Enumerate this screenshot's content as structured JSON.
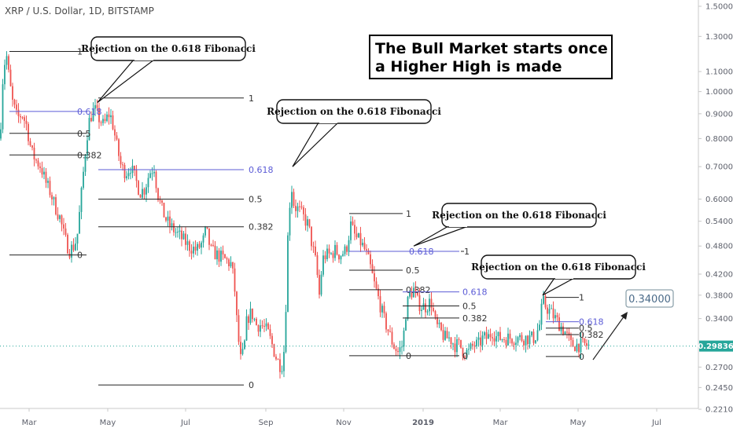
{
  "header": {
    "title": "XRP / U.S. Dollar, 1D, BITSTAMP"
  },
  "headline": {
    "line1": "The Bull Market starts once",
    "line2": "a Higher High is made"
  },
  "colors": {
    "up": "#26a69a",
    "down": "#ef5350",
    "fib_blue": "#5b5bd6",
    "fib_line": "#222222",
    "current_price_bg": "#26a69a",
    "target_border": "#90a4ae"
  },
  "chart_data": {
    "type": "candlestick",
    "title": "XRP / U.S. Dollar, 1D, BITSTAMP",
    "y_scale": "log",
    "ylim": [
      0.21,
      1.55
    ],
    "y_ticks": [
      "1.50000",
      "1.30000",
      "1.10000",
      "1.00000",
      "0.90000",
      "0.80000",
      "0.70000",
      "0.60000",
      "0.54000",
      "0.48000",
      "0.42000",
      "0.38000",
      "0.34000",
      "0.30000",
      "0.27000",
      "0.24500",
      "0.22100"
    ],
    "x_ticks": [
      "Mar",
      "May",
      "Jul",
      "Sep",
      "Nov",
      "2019",
      "Mar",
      "May",
      "Jul"
    ],
    "current_price": "0.29836",
    "target": {
      "label": "0.34000",
      "price": 0.34
    },
    "series": [
      {
        "name": "XRP/USD",
        "path": [
          [
            0,
            0.8
          ],
          [
            4,
            1.1
          ],
          [
            8,
            1.2
          ],
          [
            12,
            1.05
          ],
          [
            16,
            0.95
          ],
          [
            22,
            0.88
          ],
          [
            28,
            0.9
          ],
          [
            34,
            0.85
          ],
          [
            40,
            0.75
          ],
          [
            46,
            0.72
          ],
          [
            52,
            0.7
          ],
          [
            58,
            0.65
          ],
          [
            64,
            0.62
          ],
          [
            70,
            0.58
          ],
          [
            76,
            0.55
          ],
          [
            82,
            0.5
          ],
          [
            88,
            0.47
          ],
          [
            94,
            0.48
          ],
          [
            98,
            0.5
          ],
          [
            102,
            0.58
          ],
          [
            106,
            0.68
          ],
          [
            110,
            0.8
          ],
          [
            114,
            0.88
          ],
          [
            120,
            0.92
          ],
          [
            126,
            0.88
          ],
          [
            132,
            0.85
          ],
          [
            138,
            0.9
          ],
          [
            142,
            0.88
          ],
          [
            148,
            0.78
          ],
          [
            154,
            0.7
          ],
          [
            160,
            0.68
          ],
          [
            166,
            0.7
          ],
          [
            172,
            0.66
          ],
          [
            178,
            0.62
          ],
          [
            184,
            0.63
          ],
          [
            190,
            0.68
          ],
          [
            196,
            0.7
          ],
          [
            200,
            0.62
          ],
          [
            206,
            0.57
          ],
          [
            212,
            0.54
          ],
          [
            220,
            0.52
          ],
          [
            230,
            0.5
          ],
          [
            240,
            0.48
          ],
          [
            250,
            0.47
          ],
          [
            258,
            0.49
          ],
          [
            262,
            0.52
          ],
          [
            268,
            0.47
          ],
          [
            276,
            0.46
          ],
          [
            286,
            0.45
          ],
          [
            294,
            0.44
          ],
          [
            298,
            0.4
          ],
          [
            302,
            0.32
          ],
          [
            306,
            0.28
          ],
          [
            310,
            0.29
          ],
          [
            314,
            0.34
          ],
          [
            320,
            0.35
          ],
          [
            326,
            0.33
          ],
          [
            332,
            0.33
          ],
          [
            340,
            0.32
          ],
          [
            346,
            0.3
          ],
          [
            352,
            0.28
          ],
          [
            358,
            0.27
          ],
          [
            362,
            0.3
          ],
          [
            366,
            0.5
          ],
          [
            370,
            0.65
          ],
          [
            374,
            0.58
          ],
          [
            380,
            0.57
          ],
          [
            386,
            0.55
          ],
          [
            392,
            0.53
          ],
          [
            396,
            0.49
          ],
          [
            402,
            0.44
          ],
          [
            406,
            0.38
          ],
          [
            410,
            0.45
          ],
          [
            414,
            0.46
          ],
          [
            420,
            0.46
          ],
          [
            426,
            0.47
          ],
          [
            432,
            0.46
          ],
          [
            440,
            0.47
          ],
          [
            446,
            0.53
          ],
          [
            452,
            0.5
          ],
          [
            458,
            0.49
          ],
          [
            464,
            0.47
          ],
          [
            470,
            0.44
          ],
          [
            476,
            0.4
          ],
          [
            482,
            0.37
          ],
          [
            488,
            0.34
          ],
          [
            494,
            0.32
          ],
          [
            500,
            0.3
          ],
          [
            506,
            0.29
          ],
          [
            512,
            0.3
          ],
          [
            516,
            0.35
          ],
          [
            520,
            0.38
          ],
          [
            526,
            0.39
          ],
          [
            530,
            0.37
          ],
          [
            536,
            0.36
          ],
          [
            542,
            0.36
          ],
          [
            548,
            0.37
          ],
          [
            554,
            0.33
          ],
          [
            560,
            0.32
          ],
          [
            566,
            0.31
          ],
          [
            572,
            0.31
          ],
          [
            578,
            0.3
          ],
          [
            584,
            0.3
          ],
          [
            590,
            0.29
          ],
          [
            596,
            0.29
          ],
          [
            602,
            0.3
          ],
          [
            608,
            0.3
          ],
          [
            614,
            0.31
          ],
          [
            620,
            0.31
          ],
          [
            626,
            0.32
          ],
          [
            632,
            0.31
          ],
          [
            640,
            0.31
          ],
          [
            650,
            0.31
          ],
          [
            660,
            0.31
          ],
          [
            670,
            0.31
          ],
          [
            680,
            0.31
          ],
          [
            686,
            0.33
          ],
          [
            690,
            0.37
          ],
          [
            694,
            0.36
          ],
          [
            700,
            0.35
          ],
          [
            706,
            0.34
          ],
          [
            712,
            0.33
          ],
          [
            718,
            0.32
          ],
          [
            722,
            0.31
          ],
          [
            726,
            0.3
          ],
          [
            732,
            0.3
          ],
          [
            738,
            0.3
          ],
          [
            744,
            0.3
          ],
          [
            750,
            0.298
          ]
        ]
      }
    ],
    "annotations": {
      "fibonacci_sets": [
        {
          "from": 12,
          "to": 110,
          "label_x": 98,
          "levels": [
            {
              "label": "1",
              "price": 1.21,
              "blue": false
            },
            {
              "label": "0.618",
              "price": 0.91,
              "blue": true
            },
            {
              "label": "0.5",
              "price": 0.82,
              "blue": false
            },
            {
              "label": "0.382",
              "price": 0.74,
              "blue": false
            },
            {
              "label": "0",
              "price": 0.46,
              "blue": false
            }
          ]
        },
        {
          "from": 125,
          "to": 310,
          "label_x": 316,
          "levels": [
            {
              "label": "1",
              "price": 0.97,
              "blue": false
            },
            {
              "label": "0.618",
              "price": 0.69,
              "blue": true
            },
            {
              "label": "0.5",
              "price": 0.6,
              "blue": false
            },
            {
              "label": "0.382",
              "price": 0.526,
              "blue": false
            },
            {
              "label": "0",
              "price": 0.248,
              "blue": false
            }
          ]
        },
        {
          "from": 444,
          "to": 512,
          "label_x": 516,
          "levels": [
            {
              "label": "1",
              "price": 0.56,
              "blue": false
            },
            {
              "label": "0.5",
              "price": 0.428,
              "blue": false
            },
            {
              "label": "0.382",
              "price": 0.39,
              "blue": false
            },
            {
              "label": "0",
              "price": 0.285,
              "blue": false
            }
          ]
        },
        {
          "from": 444,
          "to": 584,
          "label_x": 520,
          "levels": [
            {
              "label": "0.618",
              "price": 0.468,
              "blue": true
            }
          ]
        },
        {
          "from": 586,
          "to": 590,
          "label_x": 590,
          "levels": [
            {
              "label": "1",
              "price": 0.468,
              "blue": false
            }
          ]
        },
        {
          "from": 512,
          "to": 584,
          "label_x": 588,
          "levels": [
            {
              "label": "0.618",
              "price": 0.386,
              "blue": true
            },
            {
              "label": "0.5",
              "price": 0.361,
              "blue": false
            },
            {
              "label": "0.382",
              "price": 0.341,
              "blue": false
            },
            {
              "label": "0",
              "price": 0.285,
              "blue": false
            }
          ]
        },
        {
          "from": 694,
          "to": 736,
          "label_x": 736,
          "levels": [
            {
              "label": "1",
              "price": 0.376,
              "blue": false
            },
            {
              "label": "0.618",
              "price": 0.335,
              "blue": true
            },
            {
              "label": "0.5",
              "price": 0.325,
              "blue": false
            },
            {
              "label": "0.382",
              "price": 0.315,
              "blue": false
            },
            {
              "label": "0",
              "price": 0.284,
              "blue": false
            }
          ]
        }
      ],
      "callouts": [
        {
          "text": "Rejection on the 0.618 Fibonacci",
          "anchor_x": 124,
          "anchor_price": 0.95
        },
        {
          "text": "Rejection on the 0.618 Fibonacci",
          "anchor_x": 372,
          "anchor_price": 0.7
        },
        {
          "text": "Rejection on the 0.618 Fibonacci",
          "anchor_x": 526,
          "anchor_price": 0.48
        },
        {
          "text": "Rejection on the 0.618 Fibonacci",
          "anchor_x": 690,
          "anchor_price": 0.38
        }
      ]
    }
  }
}
